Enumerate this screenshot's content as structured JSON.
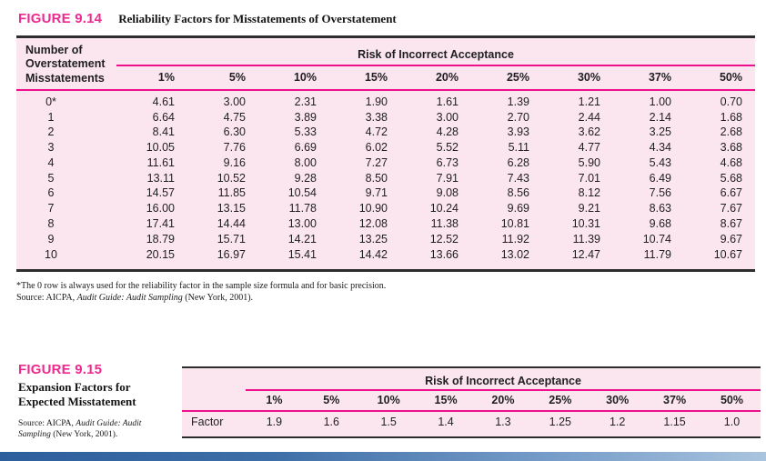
{
  "figure14": {
    "label": "FIGURE 9.14",
    "title": "Reliability Factors for Misstatements of Overstatement",
    "left_header": "Number of\nOverstatement\nMisstatements",
    "span_header": "Risk of Incorrect Acceptance",
    "risk_columns": [
      "1%",
      "5%",
      "10%",
      "15%",
      "20%",
      "25%",
      "30%",
      "37%",
      "50%"
    ],
    "rows": [
      {
        "misstatements": "0*",
        "values": [
          "4.61",
          "3.00",
          "2.31",
          "1.90",
          "1.61",
          "1.39",
          "1.21",
          "1.00",
          "0.70"
        ]
      },
      {
        "misstatements": "1",
        "values": [
          "6.64",
          "4.75",
          "3.89",
          "3.38",
          "3.00",
          "2.70",
          "2.44",
          "2.14",
          "1.68"
        ]
      },
      {
        "misstatements": "2",
        "values": [
          "8.41",
          "6.30",
          "5.33",
          "4.72",
          "4.28",
          "3.93",
          "3.62",
          "3.25",
          "2.68"
        ]
      },
      {
        "misstatements": "3",
        "values": [
          "10.05",
          "7.76",
          "6.69",
          "6.02",
          "5.52",
          "5.11",
          "4.77",
          "4.34",
          "3.68"
        ]
      },
      {
        "misstatements": "4",
        "values": [
          "11.61",
          "9.16",
          "8.00",
          "7.27",
          "6.73",
          "6.28",
          "5.90",
          "5.43",
          "4.68"
        ]
      },
      {
        "misstatements": "5",
        "values": [
          "13.11",
          "10.52",
          "9.28",
          "8.50",
          "7.91",
          "7.43",
          "7.01",
          "6.49",
          "5.68"
        ]
      },
      {
        "misstatements": "6",
        "values": [
          "14.57",
          "11.85",
          "10.54",
          "9.71",
          "9.08",
          "8.56",
          "8.12",
          "7.56",
          "6.67"
        ]
      },
      {
        "misstatements": "7",
        "values": [
          "16.00",
          "13.15",
          "11.78",
          "10.90",
          "10.24",
          "9.69",
          "9.21",
          "8.63",
          "7.67"
        ]
      },
      {
        "misstatements": "8",
        "values": [
          "17.41",
          "14.44",
          "13.00",
          "12.08",
          "11.38",
          "10.81",
          "10.31",
          "9.68",
          "8.67"
        ]
      },
      {
        "misstatements": "9",
        "values": [
          "18.79",
          "15.71",
          "14.21",
          "13.25",
          "12.52",
          "11.92",
          "11.39",
          "10.74",
          "9.67"
        ]
      },
      {
        "misstatements": "10",
        "values": [
          "20.15",
          "16.97",
          "15.41",
          "14.42",
          "13.66",
          "13.02",
          "12.47",
          "11.79",
          "10.67"
        ]
      }
    ],
    "footnote": "*The 0 row is always used for the reliability factor in the sample size formula and for basic precision.",
    "source_prefix": "Source: AICPA, ",
    "source_italic": "Audit Guide: Audit Sampling",
    "source_suffix": " (New York, 2001)."
  },
  "figure15": {
    "label": "FIGURE 9.15",
    "title": "Expansion Factors for Expected Misstatement",
    "span_header": "Risk of Incorrect Acceptance",
    "risk_columns": [
      "1%",
      "5%",
      "10%",
      "15%",
      "20%",
      "25%",
      "30%",
      "37%",
      "50%"
    ],
    "row_label": "Factor",
    "factors": [
      "1.9",
      "1.6",
      "1.5",
      "1.4",
      "1.3",
      "1.25",
      "1.2",
      "1.15",
      "1.0"
    ],
    "source_prefix": "Source: AICPA, ",
    "source_italic": "Audit Guide: Audit Sampling",
    "source_suffix": " (New York, 2001)."
  },
  "colors": {
    "accent_pink": "#ec2a8f",
    "rule_magenta": "#ec108c",
    "table_background": "#fbe5ef",
    "table_border": "#2d2d2d",
    "bottom_bar_left": "#2d5f9d",
    "bottom_bar_right": "#a9c4de"
  }
}
